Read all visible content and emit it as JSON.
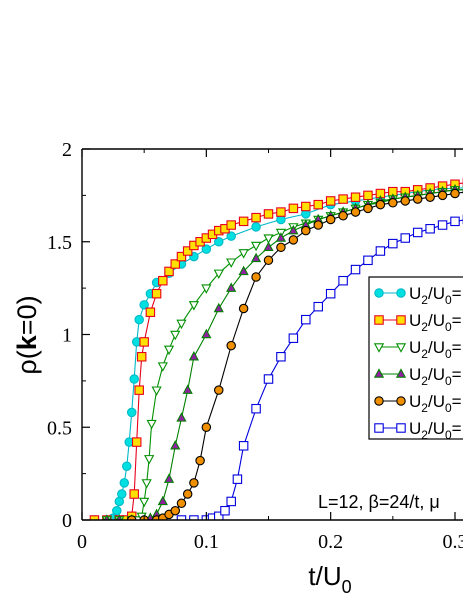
{
  "chart_data": {
    "type": "line",
    "xlabel": "t/U",
    "xlabel_sub": "0",
    "ylabel": "ρ(k=0)",
    "ylabel_parts": [
      "ρ(",
      "k",
      "=0)"
    ],
    "xlim": [
      0,
      0.32
    ],
    "ylim": [
      0,
      2
    ],
    "xticks": [
      0,
      0.1,
      0.2,
      0.3
    ],
    "xtick_labels": [
      "0",
      "0.1",
      "0.2",
      "0.3"
    ],
    "yticks": [
      0,
      0.5,
      1,
      1.5,
      2
    ],
    "ytick_labels": [
      "0",
      "0.5",
      "1",
      "1.5",
      "2"
    ],
    "annotation": "L=12, β=24/t, μ",
    "legend_placement": "right, partially clipped",
    "legend_label_prefix": "U",
    "legend_label_sub": "2",
    "legend_label_mid": "/U",
    "legend_label_sub2": "0",
    "legend_label_tail": "=",
    "series": [
      {
        "color": "#00b8c8",
        "fill": "#00e0e0",
        "marker": "circle",
        "x": [
          0.01,
          0.02,
          0.025,
          0.028,
          0.03,
          0.032,
          0.034,
          0.036,
          0.038,
          0.04,
          0.042,
          0.044,
          0.046,
          0.05,
          0.055,
          0.06,
          0.07,
          0.08,
          0.09,
          0.1,
          0.11,
          0.12,
          0.14,
          0.16,
          0.18,
          0.2,
          0.22,
          0.24,
          0.26,
          0.28,
          0.3,
          0.32
        ],
        "y": [
          0.0,
          0.0,
          0.01,
          0.05,
          0.1,
          0.14,
          0.2,
          0.29,
          0.42,
          0.58,
          0.76,
          0.96,
          1.08,
          1.16,
          1.22,
          1.28,
          1.33,
          1.38,
          1.42,
          1.46,
          1.5,
          1.53,
          1.58,
          1.62,
          1.65,
          1.7,
          1.72,
          1.74,
          1.76,
          1.78,
          1.79,
          1.79
        ]
      },
      {
        "color": "#e8001c",
        "fill": "#ffe000",
        "marker": "square",
        "x": [
          0.01,
          0.02,
          0.03,
          0.035,
          0.04,
          0.042,
          0.044,
          0.046,
          0.048,
          0.05,
          0.055,
          0.06,
          0.065,
          0.07,
          0.075,
          0.08,
          0.085,
          0.09,
          0.095,
          0.1,
          0.105,
          0.11,
          0.115,
          0.12,
          0.13,
          0.14,
          0.15,
          0.16,
          0.17,
          0.18,
          0.19,
          0.2,
          0.21,
          0.22,
          0.23,
          0.24,
          0.25,
          0.26,
          0.27,
          0.28,
          0.29,
          0.3,
          0.31,
          0.32
        ],
        "y": [
          0.0,
          0.0,
          0.0,
          0.0,
          0.02,
          0.14,
          0.42,
          0.7,
          0.88,
          0.96,
          1.12,
          1.22,
          1.29,
          1.34,
          1.38,
          1.42,
          1.45,
          1.48,
          1.5,
          1.52,
          1.54,
          1.56,
          1.57,
          1.59,
          1.61,
          1.63,
          1.65,
          1.66,
          1.68,
          1.69,
          1.7,
          1.72,
          1.73,
          1.74,
          1.75,
          1.76,
          1.77,
          1.77,
          1.78,
          1.79,
          1.8,
          1.81,
          1.82,
          1.82
        ]
      },
      {
        "color": "#009000",
        "fill": "#ffffff",
        "marker": "triangle-down",
        "x": [
          0.02,
          0.03,
          0.04,
          0.045,
          0.048,
          0.05,
          0.052,
          0.054,
          0.056,
          0.06,
          0.065,
          0.07,
          0.075,
          0.08,
          0.09,
          0.1,
          0.11,
          0.12,
          0.13,
          0.14,
          0.15,
          0.16,
          0.17,
          0.18,
          0.19,
          0.2,
          0.21,
          0.22,
          0.23,
          0.24,
          0.25,
          0.26,
          0.27,
          0.28,
          0.29,
          0.3,
          0.31,
          0.32
        ],
        "y": [
          0.0,
          0.0,
          0.0,
          0.0,
          0.02,
          0.1,
          0.2,
          0.33,
          0.52,
          0.7,
          0.83,
          0.92,
          1.0,
          1.06,
          1.16,
          1.25,
          1.33,
          1.39,
          1.44,
          1.48,
          1.52,
          1.55,
          1.58,
          1.6,
          1.62,
          1.64,
          1.66,
          1.68,
          1.7,
          1.71,
          1.73,
          1.74,
          1.75,
          1.76,
          1.77,
          1.78,
          1.78,
          1.79
        ]
      },
      {
        "color": "#008000",
        "fill": "#9020a0",
        "marker": "triangle-up",
        "x": [
          0.02,
          0.03,
          0.04,
          0.05,
          0.055,
          0.06,
          0.065,
          0.07,
          0.075,
          0.08,
          0.085,
          0.09,
          0.1,
          0.11,
          0.12,
          0.13,
          0.14,
          0.15,
          0.16,
          0.17,
          0.18,
          0.19,
          0.2,
          0.21,
          0.22,
          0.23,
          0.24,
          0.25,
          0.26,
          0.27,
          0.28,
          0.29,
          0.3,
          0.31,
          0.32
        ],
        "y": [
          0.0,
          0.0,
          0.0,
          0.0,
          0.01,
          0.03,
          0.1,
          0.22,
          0.4,
          0.55,
          0.7,
          0.88,
          1.0,
          1.14,
          1.25,
          1.34,
          1.41,
          1.47,
          1.52,
          1.56,
          1.59,
          1.62,
          1.64,
          1.66,
          1.68,
          1.7,
          1.72,
          1.73,
          1.74,
          1.75,
          1.76,
          1.77,
          1.78,
          1.78,
          1.79
        ]
      },
      {
        "color": "#000000",
        "fill": "#f09000",
        "marker": "circle",
        "x": [
          0.04,
          0.05,
          0.06,
          0.065,
          0.07,
          0.075,
          0.08,
          0.085,
          0.09,
          0.095,
          0.1,
          0.11,
          0.12,
          0.13,
          0.14,
          0.15,
          0.16,
          0.17,
          0.18,
          0.19,
          0.2,
          0.21,
          0.22,
          0.23,
          0.24,
          0.25,
          0.26,
          0.27,
          0.28,
          0.29,
          0.3,
          0.31,
          0.32
        ],
        "y": [
          0.0,
          0.0,
          0.0,
          0.01,
          0.03,
          0.05,
          0.09,
          0.14,
          0.2,
          0.32,
          0.5,
          0.7,
          0.94,
          1.14,
          1.31,
          1.4,
          1.47,
          1.51,
          1.56,
          1.59,
          1.62,
          1.64,
          1.66,
          1.68,
          1.7,
          1.71,
          1.72,
          1.73,
          1.74,
          1.75,
          1.76,
          1.77,
          1.77
        ]
      },
      {
        "color": "#0000e0",
        "fill": "#ffffff",
        "marker": "square",
        "x": [
          0.08,
          0.09,
          0.1,
          0.105,
          0.11,
          0.115,
          0.12,
          0.125,
          0.13,
          0.14,
          0.15,
          0.16,
          0.17,
          0.18,
          0.19,
          0.2,
          0.21,
          0.22,
          0.23,
          0.24,
          0.25,
          0.26,
          0.27,
          0.28,
          0.29,
          0.3,
          0.31,
          0.32
        ],
        "y": [
          0.0,
          0.0,
          0.0,
          0.01,
          0.02,
          0.05,
          0.1,
          0.22,
          0.4,
          0.6,
          0.76,
          0.88,
          0.98,
          1.08,
          1.15,
          1.22,
          1.29,
          1.35,
          1.4,
          1.45,
          1.49,
          1.52,
          1.55,
          1.57,
          1.59,
          1.61,
          1.62,
          1.63
        ]
      }
    ]
  }
}
